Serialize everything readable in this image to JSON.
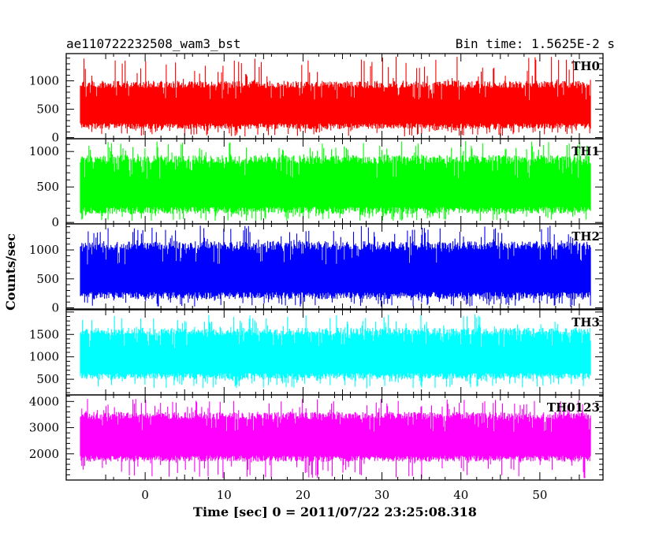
{
  "header": {
    "title": "ae110722232508_wam3_bst",
    "bin_time": "Bin time: 1.5625E-2 s"
  },
  "axes": {
    "xlabel": "Time [sec] 0 = 2011/07/22 23:25:08.318",
    "ylabel": "Counts/sec"
  },
  "chart_data": {
    "type": "line",
    "title": "ae110722232508_wam3_bst",
    "subtitle": "Bin time: 1.5625E-2 s",
    "xlabel": "Time [sec] 0 = 2011/07/22 23:25:08.318",
    "ylabel": "Counts/sec",
    "xlim": [
      -10,
      58
    ],
    "x_range_data": [
      -8.2,
      56.5
    ],
    "xticks": [
      0,
      10,
      20,
      30,
      40,
      50
    ],
    "panels": [
      {
        "name": "TH0",
        "color": "#ff0000",
        "ylim": [
          -20,
          1480
        ],
        "yticks": [
          0,
          500,
          1000
        ],
        "summary": {
          "min": 20,
          "typical_low": 150,
          "typical_high": 1000,
          "max": 1450
        }
      },
      {
        "name": "TH1",
        "color": "#00ff00",
        "ylim": [
          -20,
          1180
        ],
        "yticks": [
          0,
          500,
          1000
        ],
        "summary": {
          "min": 20,
          "typical_low": 120,
          "typical_high": 950,
          "max": 1150
        }
      },
      {
        "name": "TH2",
        "color": "#0000ff",
        "ylim": [
          -20,
          1450
        ],
        "yticks": [
          0,
          500,
          1000
        ],
        "summary": {
          "min": 20,
          "typical_low": 150,
          "typical_high": 1150,
          "max": 1420
        }
      },
      {
        "name": "TH3",
        "color": "#00ffff",
        "ylim": [
          150,
          2050
        ],
        "yticks": [
          500,
          1000,
          1500
        ],
        "summary": {
          "min": 300,
          "typical_low": 500,
          "typical_high": 1650,
          "max": 1950
        }
      },
      {
        "name": "TH0123",
        "color": "#ff00ff",
        "ylim": [
          1000,
          4250
        ],
        "yticks": [
          2000,
          3000,
          4000
        ],
        "summary": {
          "min": 1050,
          "typical_low": 1700,
          "typical_high": 3600,
          "max": 4100
        }
      }
    ]
  }
}
